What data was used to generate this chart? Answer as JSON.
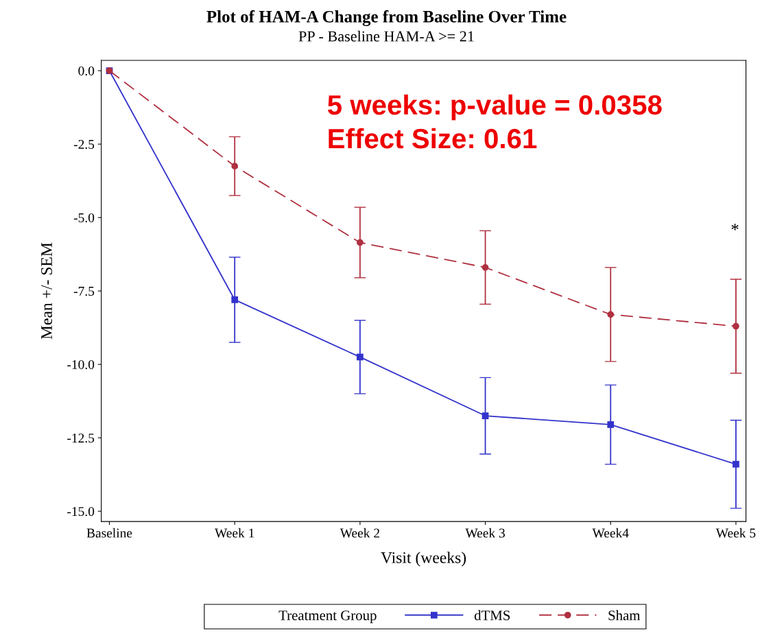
{
  "chart_data": {
    "type": "line",
    "title": "Plot of HAM-A Change from Baseline Over Time",
    "subtitle": "PP - Baseline HAM-A >= 21",
    "xlabel": "Visit (weeks)",
    "ylabel": "Mean +/- SEM",
    "legend_title": "Treatment Group",
    "categories": [
      "Baseline",
      "Week 1",
      "Week 2",
      "Week 3",
      "Week4",
      "Week 5"
    ],
    "series": [
      {
        "name": "dTMS",
        "color": "#3333cc",
        "marker": "square",
        "line_style": "solid",
        "values": [
          0,
          -7.8,
          -9.75,
          -11.75,
          -12.05,
          -13.4
        ],
        "errors": [
          null,
          1.45,
          1.25,
          1.3,
          1.35,
          1.5
        ]
      },
      {
        "name": "Sham",
        "color": "#b03040",
        "marker": "circle",
        "line_style": "dashed",
        "values": [
          0,
          -3.25,
          -5.85,
          -6.7,
          -8.3,
          -8.7
        ],
        "errors": [
          null,
          1.0,
          1.2,
          1.25,
          1.6,
          1.6
        ]
      }
    ],
    "ylim": [
      -15.35,
      0.35
    ],
    "yticks": [
      {
        "value": 0,
        "label": "0.0"
      },
      {
        "value": -2.5,
        "label": "-2.5"
      },
      {
        "value": -5,
        "label": "-5.0"
      },
      {
        "value": -7.5,
        "label": "-7.5"
      },
      {
        "value": -10,
        "label": "-10.0"
      },
      {
        "value": -12.5,
        "label": "-12.5"
      },
      {
        "value": -15,
        "label": "-15.0"
      }
    ],
    "annotations": [
      "5 weeks: p-value = 0.0358",
      "Effect Size: 0.61",
      "*"
    ],
    "legend": "bottom",
    "grid": false
  }
}
